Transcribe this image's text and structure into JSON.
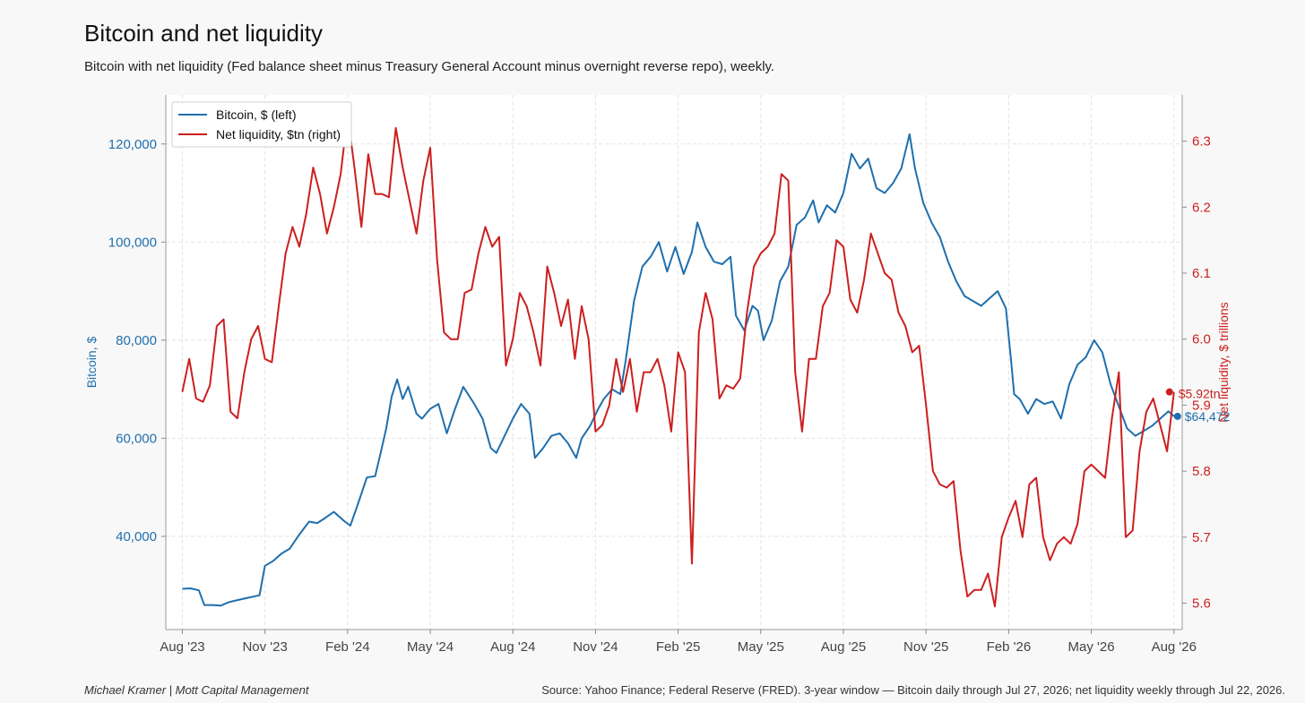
{
  "header": {
    "title": "Bitcoin and net liquidity",
    "subtitle": "Bitcoin with net liquidity (Fed balance sheet minus Treasury General Account minus overnight reverse repo), weekly."
  },
  "footer": {
    "author": "Michael Kramer  |  Mott Capital Management",
    "source": "Source: Yahoo Finance; Federal Reserve (FRED). 3-year window — Bitcoin daily through Jul 27, 2026; net liquidity weekly through Jul 22, 2026."
  },
  "colors": {
    "bitcoin": "#1f6fad",
    "liquidity": "#cc1f1f"
  },
  "chart_data": {
    "type": "line",
    "x_axis": {
      "ticks": [
        "Aug '23",
        "Nov '23",
        "Feb '24",
        "May '24",
        "Aug '24",
        "Nov '24",
        "Feb '25",
        "May '25",
        "Aug '25",
        "Nov '25",
        "Feb '26",
        "May '26",
        "Aug '26"
      ],
      "range_months": [
        -0.6,
        36.3
      ]
    },
    "y_left": {
      "label": "Bitcoin, $",
      "range": [
        21000,
        130000
      ],
      "ticks": [
        40000,
        60000,
        80000,
        100000,
        120000
      ],
      "tick_labels": [
        "40,000",
        "60,000",
        "80,000",
        "100,000",
        "120,000"
      ]
    },
    "y_right": {
      "label": "Net liquidity, $ trillions",
      "range": [
        5.56,
        6.37
      ],
      "ticks": [
        5.6,
        5.7,
        5.8,
        5.9,
        6.0,
        6.1,
        6.2,
        6.3
      ],
      "tick_labels": [
        "5.6",
        "5.7",
        "5.8",
        "5.9",
        "6.0",
        "6.1",
        "6.2",
        "6.3"
      ]
    },
    "legend": {
      "placement": "top-left",
      "grid": true
    },
    "series": [
      {
        "name": "Bitcoin, $ (left)",
        "axis": "left",
        "end_label": "$64,472",
        "points": [
          [
            0.0,
            29300
          ],
          [
            0.3,
            29400
          ],
          [
            0.6,
            29000
          ],
          [
            0.8,
            26000
          ],
          [
            1.1,
            26000
          ],
          [
            1.4,
            25900
          ],
          [
            1.7,
            26600
          ],
          [
            2.0,
            27000
          ],
          [
            2.4,
            27500
          ],
          [
            2.8,
            28000
          ],
          [
            3.0,
            34000
          ],
          [
            3.3,
            35000
          ],
          [
            3.6,
            36500
          ],
          [
            3.9,
            37500
          ],
          [
            4.2,
            40000
          ],
          [
            4.6,
            43000
          ],
          [
            4.9,
            42700
          ],
          [
            5.2,
            43800
          ],
          [
            5.5,
            45000
          ],
          [
            5.9,
            43000
          ],
          [
            6.1,
            42200
          ],
          [
            6.4,
            47000
          ],
          [
            6.7,
            52000
          ],
          [
            7.0,
            52300
          ],
          [
            7.2,
            57000
          ],
          [
            7.4,
            62000
          ],
          [
            7.6,
            68500
          ],
          [
            7.8,
            72000
          ],
          [
            8.0,
            68000
          ],
          [
            8.2,
            70500
          ],
          [
            8.5,
            65000
          ],
          [
            8.7,
            64000
          ],
          [
            9.0,
            66000
          ],
          [
            9.3,
            67000
          ],
          [
            9.6,
            61000
          ],
          [
            9.9,
            66000
          ],
          [
            10.2,
            70500
          ],
          [
            10.6,
            67000
          ],
          [
            10.9,
            64000
          ],
          [
            11.2,
            58000
          ],
          [
            11.4,
            57000
          ],
          [
            11.7,
            60500
          ],
          [
            12.0,
            64000
          ],
          [
            12.3,
            67000
          ],
          [
            12.6,
            65000
          ],
          [
            12.8,
            56000
          ],
          [
            13.1,
            58000
          ],
          [
            13.4,
            60500
          ],
          [
            13.7,
            61000
          ],
          [
            14.0,
            59000
          ],
          [
            14.3,
            56000
          ],
          [
            14.5,
            60000
          ],
          [
            14.8,
            62500
          ],
          [
            15.1,
            66000
          ],
          [
            15.3,
            68000
          ],
          [
            15.6,
            70000
          ],
          [
            15.9,
            69000
          ],
          [
            16.1,
            76000
          ],
          [
            16.4,
            88000
          ],
          [
            16.7,
            95000
          ],
          [
            17.0,
            97000
          ],
          [
            17.3,
            100000
          ],
          [
            17.6,
            94000
          ],
          [
            17.9,
            99000
          ],
          [
            18.2,
            93500
          ],
          [
            18.5,
            98000
          ],
          [
            18.7,
            104000
          ],
          [
            19.0,
            99000
          ],
          [
            19.3,
            96000
          ],
          [
            19.6,
            95500
          ],
          [
            19.9,
            97000
          ],
          [
            20.1,
            85000
          ],
          [
            20.4,
            82000
          ],
          [
            20.7,
            87000
          ],
          [
            20.9,
            86000
          ],
          [
            21.1,
            80000
          ],
          [
            21.4,
            84000
          ],
          [
            21.7,
            92000
          ],
          [
            22.0,
            95000
          ],
          [
            22.3,
            103500
          ],
          [
            22.6,
            105000
          ],
          [
            22.9,
            108500
          ],
          [
            23.1,
            104000
          ],
          [
            23.4,
            107500
          ],
          [
            23.7,
            106000
          ],
          [
            24.0,
            110000
          ],
          [
            24.3,
            118000
          ],
          [
            24.6,
            115000
          ],
          [
            24.9,
            117000
          ],
          [
            25.2,
            111000
          ],
          [
            25.5,
            110000
          ],
          [
            25.8,
            112000
          ],
          [
            26.1,
            115000
          ],
          [
            26.4,
            122000
          ],
          [
            26.6,
            115000
          ],
          [
            26.9,
            108000
          ],
          [
            27.2,
            104000
          ],
          [
            27.5,
            101000
          ],
          [
            27.8,
            96000
          ],
          [
            28.1,
            92000
          ],
          [
            28.4,
            89000
          ],
          [
            28.7,
            88000
          ],
          [
            29.0,
            87000
          ],
          [
            29.3,
            88500
          ],
          [
            29.6,
            90000
          ],
          [
            29.9,
            86500
          ],
          [
            30.1,
            75000
          ],
          [
            30.2,
            69000
          ],
          [
            30.4,
            68000
          ],
          [
            30.7,
            65000
          ],
          [
            31.0,
            68000
          ],
          [
            31.3,
            67000
          ],
          [
            31.6,
            67500
          ],
          [
            31.9,
            64000
          ],
          [
            32.2,
            71000
          ],
          [
            32.5,
            75000
          ],
          [
            32.8,
            76500
          ],
          [
            33.1,
            80000
          ],
          [
            33.4,
            77500
          ],
          [
            33.7,
            71000
          ],
          [
            34.0,
            66500
          ],
          [
            34.3,
            62000
          ],
          [
            34.6,
            60500
          ],
          [
            34.9,
            61500
          ],
          [
            35.2,
            62500
          ],
          [
            35.5,
            64000
          ],
          [
            35.8,
            65500
          ],
          [
            36.0,
            64472
          ]
        ]
      },
      {
        "name": "Net liquidity, $tn (right)",
        "axis": "right",
        "end_label": "$5.92tn",
        "points": [
          [
            0.0,
            5.92
          ],
          [
            0.25,
            5.97
          ],
          [
            0.5,
            5.91
          ],
          [
            0.75,
            5.905
          ],
          [
            1.0,
            5.93
          ],
          [
            1.25,
            6.02
          ],
          [
            1.5,
            6.03
          ],
          [
            1.75,
            5.89
          ],
          [
            2.0,
            5.88
          ],
          [
            2.25,
            5.95
          ],
          [
            2.5,
            6.0
          ],
          [
            2.75,
            6.02
          ],
          [
            3.0,
            5.97
          ],
          [
            3.25,
            5.965
          ],
          [
            3.5,
            6.05
          ],
          [
            3.75,
            6.13
          ],
          [
            4.0,
            6.17
          ],
          [
            4.25,
            6.14
          ],
          [
            4.5,
            6.19
          ],
          [
            4.75,
            6.26
          ],
          [
            5.0,
            6.22
          ],
          [
            5.25,
            6.16
          ],
          [
            5.5,
            6.2
          ],
          [
            5.75,
            6.25
          ],
          [
            6.0,
            6.34
          ],
          [
            6.25,
            6.26
          ],
          [
            6.5,
            6.17
          ],
          [
            6.75,
            6.28
          ],
          [
            7.0,
            6.22
          ],
          [
            7.25,
            6.22
          ],
          [
            7.5,
            6.215
          ],
          [
            7.75,
            6.32
          ],
          [
            8.0,
            6.26
          ],
          [
            8.25,
            6.21
          ],
          [
            8.5,
            6.16
          ],
          [
            8.75,
            6.24
          ],
          [
            9.0,
            6.29
          ],
          [
            9.25,
            6.12
          ],
          [
            9.5,
            6.01
          ],
          [
            9.75,
            6.0
          ],
          [
            10.0,
            6.0
          ],
          [
            10.25,
            6.07
          ],
          [
            10.5,
            6.075
          ],
          [
            10.75,
            6.13
          ],
          [
            11.0,
            6.17
          ],
          [
            11.25,
            6.14
          ],
          [
            11.5,
            6.155
          ],
          [
            11.75,
            5.96
          ],
          [
            12.0,
            6.0
          ],
          [
            12.25,
            6.07
          ],
          [
            12.5,
            6.05
          ],
          [
            12.75,
            6.01
          ],
          [
            13.0,
            5.96
          ],
          [
            13.25,
            6.11
          ],
          [
            13.5,
            6.07
          ],
          [
            13.75,
            6.02
          ],
          [
            14.0,
            6.06
          ],
          [
            14.25,
            5.97
          ],
          [
            14.5,
            6.05
          ],
          [
            14.75,
            6.0
          ],
          [
            15.0,
            5.86
          ],
          [
            15.25,
            5.87
          ],
          [
            15.5,
            5.9
          ],
          [
            15.75,
            5.97
          ],
          [
            16.0,
            5.92
          ],
          [
            16.25,
            5.97
          ],
          [
            16.5,
            5.89
          ],
          [
            16.75,
            5.95
          ],
          [
            17.0,
            5.95
          ],
          [
            17.25,
            5.97
          ],
          [
            17.5,
            5.93
          ],
          [
            17.75,
            5.86
          ],
          [
            18.0,
            5.98
          ],
          [
            18.25,
            5.95
          ],
          [
            18.5,
            5.66
          ],
          [
            18.75,
            6.01
          ],
          [
            19.0,
            6.07
          ],
          [
            19.25,
            6.03
          ],
          [
            19.5,
            5.91
          ],
          [
            19.75,
            5.93
          ],
          [
            20.0,
            5.925
          ],
          [
            20.25,
            5.94
          ],
          [
            20.5,
            6.04
          ],
          [
            20.75,
            6.11
          ],
          [
            21.0,
            6.13
          ],
          [
            21.25,
            6.14
          ],
          [
            21.5,
            6.16
          ],
          [
            21.75,
            6.25
          ],
          [
            22.0,
            6.24
          ],
          [
            22.25,
            5.95
          ],
          [
            22.5,
            5.86
          ],
          [
            22.75,
            5.97
          ],
          [
            23.0,
            5.97
          ],
          [
            23.25,
            6.05
          ],
          [
            23.5,
            6.07
          ],
          [
            23.75,
            6.15
          ],
          [
            24.0,
            6.14
          ],
          [
            24.25,
            6.06
          ],
          [
            24.5,
            6.04
          ],
          [
            24.75,
            6.09
          ],
          [
            25.0,
            6.16
          ],
          [
            25.25,
            6.13
          ],
          [
            25.5,
            6.1
          ],
          [
            25.75,
            6.09
          ],
          [
            26.0,
            6.04
          ],
          [
            26.25,
            6.02
          ],
          [
            26.5,
            5.98
          ],
          [
            26.75,
            5.99
          ],
          [
            27.0,
            5.9
          ],
          [
            27.25,
            5.8
          ],
          [
            27.5,
            5.78
          ],
          [
            27.75,
            5.775
          ],
          [
            28.0,
            5.785
          ],
          [
            28.25,
            5.68
          ],
          [
            28.5,
            5.61
          ],
          [
            28.75,
            5.62
          ],
          [
            29.0,
            5.62
          ],
          [
            29.25,
            5.645
          ],
          [
            29.5,
            5.595
          ],
          [
            29.75,
            5.7
          ],
          [
            30.0,
            5.73
          ],
          [
            30.25,
            5.755
          ],
          [
            30.5,
            5.7
          ],
          [
            30.75,
            5.78
          ],
          [
            31.0,
            5.79
          ],
          [
            31.25,
            5.7
          ],
          [
            31.5,
            5.665
          ],
          [
            31.75,
            5.69
          ],
          [
            32.0,
            5.7
          ],
          [
            32.25,
            5.69
          ],
          [
            32.5,
            5.72
          ],
          [
            32.75,
            5.8
          ],
          [
            33.0,
            5.81
          ],
          [
            33.25,
            5.8
          ],
          [
            33.5,
            5.79
          ],
          [
            33.75,
            5.88
          ],
          [
            34.0,
            5.95
          ],
          [
            34.25,
            5.7
          ],
          [
            34.5,
            5.71
          ],
          [
            34.75,
            5.83
          ],
          [
            35.0,
            5.89
          ],
          [
            35.25,
            5.91
          ],
          [
            35.5,
            5.87
          ],
          [
            35.75,
            5.83
          ],
          [
            36.0,
            5.92
          ]
        ]
      }
    ]
  }
}
